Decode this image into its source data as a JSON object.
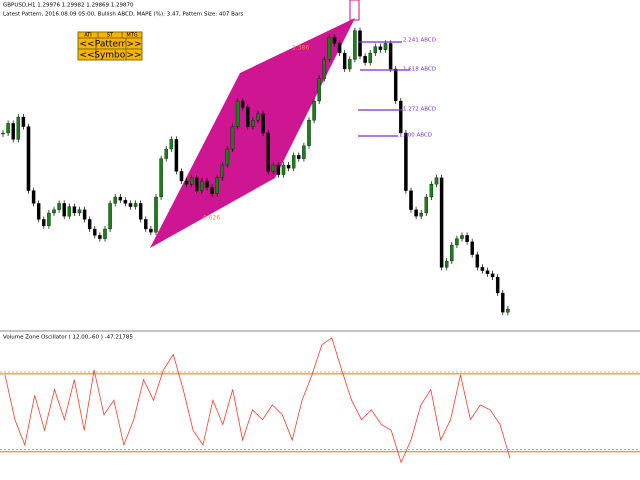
{
  "chart_data": [
    {
      "type": "candlestick",
      "title": "GBPUSD,H1  1.29976 1.29982 1.29869 1.29870",
      "subtitle": "Latest Pattern, 2016.08.09 05:00, Bullish ABCD, MAPE (%): 3.47, Pattern Size: 407 Bars",
      "annotations": [
        "1.386",
        "0.626",
        "2.241 ABCD",
        "1.618 ABCD",
        "1.272 ABCD",
        "1.000 ABCD"
      ],
      "buttons": {
        "tabs": [
          "ATI",
          "ST",
          "MTG"
        ],
        "pattern": [
          "<<",
          "Pattern",
          ">>"
        ],
        "symbol": [
          "<<",
          "Symbol",
          ">>"
        ]
      },
      "ylim": [
        0,
        100
      ],
      "bull_color": "#1a7f1a",
      "bear_color": "#000000",
      "pattern_color": "#cc0a8c",
      "values": [
        60,
        63,
        58,
        65,
        62,
        42,
        38,
        33,
        31,
        35,
        36,
        38,
        34,
        37,
        35,
        36,
        33,
        30,
        28,
        27,
        30,
        38,
        40,
        39,
        38,
        37,
        38,
        33,
        30,
        29,
        40,
        52,
        55,
        58,
        48,
        45,
        44,
        46,
        42,
        45,
        43,
        41,
        46,
        50,
        55,
        62,
        70,
        68,
        62,
        64,
        66,
        60,
        48,
        50,
        47,
        50,
        49,
        53,
        52,
        56,
        64,
        70,
        77,
        83,
        90,
        88,
        85,
        80,
        83,
        92,
        84,
        82,
        85,
        87,
        86,
        88,
        80,
        70,
        60,
        42,
        36,
        34,
        35,
        40,
        44,
        46,
        18,
        20,
        25,
        27,
        28,
        26,
        22,
        18,
        17,
        16,
        15,
        10,
        4,
        5
      ]
    },
    {
      "type": "line",
      "title": "Volume Zone Oscillator ( 12.00,-60 ) -47.21785",
      "color": "#ff3b2f",
      "level_color": "#e07b00",
      "ylim": [
        -65,
        80
      ],
      "levels": [
        40,
        -40
      ],
      "values": [
        39,
        -7,
        -33,
        18,
        -18,
        24,
        -7,
        34,
        -18,
        44,
        -2,
        13,
        -33,
        -7,
        34,
        13,
        44,
        60,
        24,
        -18,
        -33,
        13,
        -12,
        24,
        -28,
        3,
        -7,
        8,
        -2,
        -28,
        13,
        39,
        70,
        77,
        44,
        13,
        -7,
        3,
        -12,
        -18,
        -51,
        -28,
        8,
        24,
        -28,
        -7,
        39,
        -7,
        8,
        3,
        -12,
        -47
      ]
    }
  ]
}
